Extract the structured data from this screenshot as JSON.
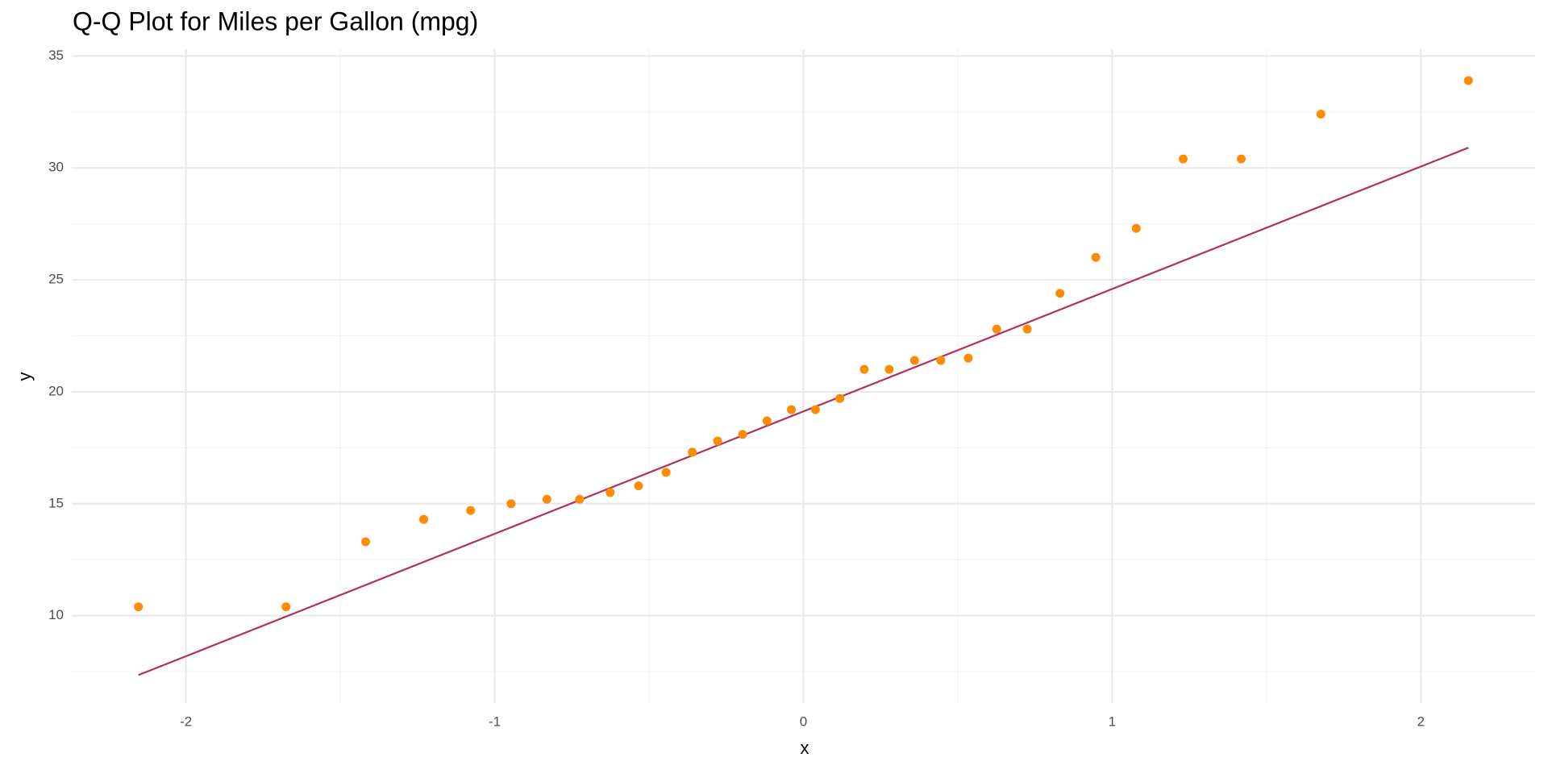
{
  "chart_data": {
    "type": "scatter",
    "title": "Q-Q Plot for Miles per Gallon (mpg)",
    "x_label": "x",
    "y_label": "y",
    "x": [
      -2.154,
      -1.676,
      -1.418,
      -1.23,
      -1.078,
      -0.947,
      -0.831,
      -0.725,
      -0.626,
      -0.534,
      -0.445,
      -0.36,
      -0.278,
      -0.197,
      -0.118,
      -0.039,
      0.039,
      0.118,
      0.197,
      0.278,
      0.36,
      0.445,
      0.534,
      0.626,
      0.725,
      0.831,
      0.947,
      1.078,
      1.23,
      1.418,
      1.676,
      2.154
    ],
    "values": [
      10.4,
      10.4,
      13.3,
      14.3,
      14.7,
      15.0,
      15.2,
      15.2,
      15.5,
      15.8,
      16.4,
      17.3,
      17.8,
      18.1,
      18.7,
      19.2,
      19.2,
      19.7,
      21.0,
      21.0,
      21.4,
      21.4,
      21.5,
      22.8,
      22.8,
      24.4,
      26.0,
      27.3,
      30.4,
      30.4,
      32.4,
      33.9
    ],
    "color": "#ff8c00",
    "line": {
      "x": [
        -2.154,
        2.154
      ],
      "values": [
        7.35,
        30.9
      ],
      "color": "#b03060"
    },
    "xlim": [
      -2.37,
      2.37
    ],
    "ylim": [
      6.1,
      35.3
    ],
    "xticks": [
      -2,
      -1,
      0,
      1,
      2
    ],
    "yticks": [
      10,
      15,
      20,
      25,
      30,
      35
    ],
    "xminor": [
      -1.5,
      -0.5,
      0.5,
      1.5
    ],
    "yminor": [
      7.5,
      12.5,
      17.5,
      22.5,
      27.5,
      32.5
    ],
    "grid": true
  }
}
